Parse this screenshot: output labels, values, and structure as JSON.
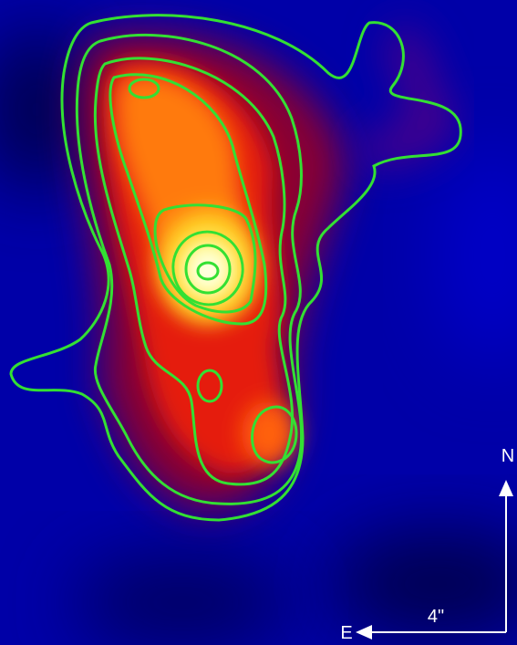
{
  "labels": {
    "north": "N",
    "east": "E",
    "scale": "4\""
  }
}
